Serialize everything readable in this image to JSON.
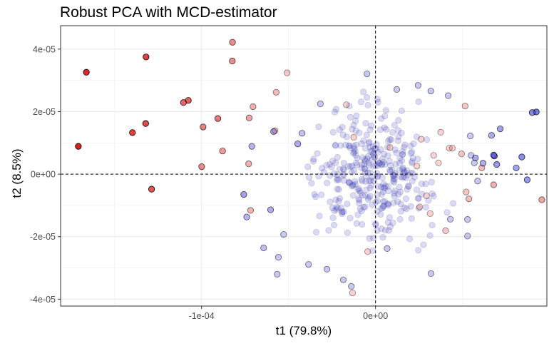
{
  "chart_data": {
    "type": "scatter",
    "title": "Robust PCA with MCD-estimator",
    "xlabel": "t1 (79.8%)",
    "ylabel": "t2 (8.5%)",
    "xlim": [
      -0.000181,
      9.85e-05
    ],
    "ylim": [
      -4.22e-05,
      4.75e-05
    ],
    "x_ticks": [
      -0.0001,
      0
    ],
    "x_tick_labels": [
      "-1e-04",
      "0e+00"
    ],
    "y_ticks": [
      -4e-05,
      -2e-05,
      0,
      2e-05,
      4e-05
    ],
    "y_tick_labels": [
      "-4e-05",
      "-2e-05",
      "0e+00",
      "2e-05",
      "4e-05"
    ],
    "reference_lines": {
      "x": 0,
      "y": 0,
      "style": "dashed"
    },
    "grid": true,
    "theme": "white background, light grey grid, black border",
    "colors": {
      "outlier": "#dc1e1e",
      "regular": "#4646dc"
    },
    "encoding": "fill opacity increases with outlyingness",
    "series": [
      {
        "group": "outlier",
        "points": [
          [
            -0.0001708,
            8.9e-06,
            1.0
          ],
          [
            -0.0001662,
            3.26e-05,
            0.95
          ],
          [
            -0.0001319,
            3.75e-05,
            0.85
          ],
          [
            -0.0001397,
            1.33e-05,
            0.85
          ],
          [
            -0.0001321,
            1.62e-05,
            0.82
          ],
          [
            -0.0001287,
            -4.8e-06,
            0.75
          ],
          [
            -0.0001076,
            2.36e-05,
            0.7
          ],
          [
            -0.0001104,
            2.29e-05,
            0.68
          ],
          [
            -9.06e-05,
            1.78e-05,
            0.6
          ],
          [
            -9.91e-05,
            1.51e-05,
            0.55
          ],
          [
            -9.99e-05,
            2.4e-06,
            0.5
          ],
          [
            -8.22e-05,
            4.22e-05,
            0.5
          ],
          [
            -8.23e-05,
            3.62e-05,
            0.5
          ],
          [
            -8.79e-05,
            7.4e-06,
            0.45
          ],
          [
            -7.26e-05,
            1.8e-05,
            0.4
          ],
          [
            -7.29e-05,
            3.3e-06,
            0.35
          ],
          [
            -7.04e-05,
            2.16e-05,
            0.35
          ],
          [
            -7.18e-05,
            -1.16e-05,
            0.35
          ],
          [
            -5.71e-05,
            2.62e-05,
            0.3
          ],
          [
            -5.08e-05,
            3.24e-05,
            0.25
          ],
          [
            -5.78e-05,
            1.39e-05,
            0.3
          ],
          [
            9.56e-05,
            -8.2e-06,
            0.4
          ],
          [
            6.79e-05,
            -3.4e-06,
            0.35
          ],
          [
            6.11e-05,
            2e-06,
            0.3
          ],
          [
            5.15e-05,
            2.18e-05,
            0.25
          ],
          [
            4.95e-05,
            6.5e-06,
            0.25
          ],
          [
            5.21e-05,
            -5.7e-06,
            0.25
          ],
          [
            5.37e-05,
            -7.9e-06,
            0.3
          ],
          [
            4.03e-05,
            -1.81e-05,
            0.25
          ],
          [
            -1.68e-05,
            2.22e-05,
            0.2
          ],
          [
            4.24e-05,
            8.3e-06,
            0.2
          ],
          [
            3.62e-05,
            3.6e-06,
            0.2
          ],
          [
            3.14e-05,
            -1.26e-05,
            0.2
          ],
          [
            2.54e-05,
            -1.05e-05,
            0.2
          ],
          [
            -1.32e-05,
            -3.8e-05,
            0.2
          ],
          [
            -4.5e-06,
            -2.48e-05,
            0.2
          ],
          [
            -1.25e-05,
            1.18e-05,
            0.2
          ],
          [
            8.3e-06,
            8.5e-06,
            0.2
          ],
          [
            2.93e-05,
            -6.9e-06,
            0.2
          ],
          [
            3.34e-05,
            6e-06,
            0.2
          ],
          [
            3.75e-05,
            1.34e-05,
            0.2
          ],
          [
            4.42e-05,
            8.3e-06,
            0.2
          ],
          [
            2.38e-05,
            2.6e-06,
            0.2
          ],
          [
            2.63e-05,
            1.12e-05,
            0.2
          ]
        ]
      },
      {
        "group": "regular",
        "points": [
          [
            9.24e-05,
            1.99e-05,
            0.7
          ],
          [
            9.01e-05,
            1.97e-05,
            0.65
          ],
          [
            8.41e-05,
            5.5e-06,
            0.6
          ],
          [
            6.83e-05,
            5.8e-06,
            0.6
          ],
          [
            6.79e-05,
            6.1e-06,
            0.6
          ],
          [
            6.97e-05,
            3.1e-06,
            0.55
          ],
          [
            8.72e-05,
            -1.8e-06,
            0.55
          ],
          [
            8.09e-05,
            2e-06,
            0.5
          ],
          [
            7.17e-05,
            1.45e-05,
            0.5
          ],
          [
            6.67e-05,
            1.24e-05,
            0.45
          ],
          [
            6.18e-05,
            3.5e-06,
            0.45
          ],
          [
            5.74e-05,
            5.2e-06,
            0.45
          ],
          [
            -7.57e-05,
            -6.5e-06,
            0.5
          ],
          [
            -7.4e-05,
            -1.37e-05,
            0.4
          ],
          [
            -7.11e-05,
            8.9e-06,
            0.4
          ],
          [
            -6.43e-05,
            -2.36e-05,
            0.35
          ],
          [
            -6.03e-05,
            -1.14e-05,
            0.45
          ],
          [
            -5.86e-05,
            1.36e-05,
            0.4
          ],
          [
            -5.58e-05,
            -2.66e-05,
            0.3
          ],
          [
            -5.28e-05,
            -1.93e-05,
            0.3
          ],
          [
            -4.47e-05,
            9.7e-06,
            0.45
          ],
          [
            -4.22e-05,
            1.31e-05,
            0.35
          ],
          [
            -5.65e-05,
            -3.2e-05,
            0.3
          ],
          [
            -3.85e-05,
            -2.89e-05,
            0.3
          ],
          [
            -3.17e-05,
            2.25e-05,
            0.3
          ],
          [
            -2.79e-05,
            -3.04e-05,
            0.3
          ],
          [
            -1.85e-05,
            -3.38e-05,
            0.3
          ],
          [
            -1.39e-05,
            -3.59e-05,
            0.3
          ],
          [
            -4.9e-06,
            3.21e-05,
            0.3
          ],
          [
            1.22e-05,
            2.71e-05,
            0.3
          ],
          [
            2.45e-05,
            2.84e-05,
            0.3
          ],
          [
            3.18e-05,
            2.66e-05,
            0.3
          ],
          [
            4.18e-05,
            2.51e-05,
            0.3
          ],
          [
            5.45e-05,
            1.22e-05,
            0.3
          ],
          [
            5.49e-05,
            6e-06,
            0.3
          ],
          [
            5.68e-05,
            3.6e-06,
            0.3
          ],
          [
            5.87e-05,
            -2.2e-06,
            0.3
          ],
          [
            4.3e-05,
            -1.44e-05,
            0.3
          ],
          [
            5.29e-05,
            -1.45e-05,
            0.3
          ],
          [
            5.29e-05,
            -1.98e-05,
            0.3
          ],
          [
            3.19e-05,
            -3.18e-05,
            0.3
          ],
          [
            6.7e-06,
            -2.38e-05,
            0.3
          ]
        ]
      }
    ],
    "background_cloud": {
      "group": "regular",
      "count": 340,
      "opacity": 0.2,
      "x_range": [
        -6e-05,
        5.5e-05
      ],
      "y_range": [
        -3e-05,
        3e-05
      ]
    }
  }
}
